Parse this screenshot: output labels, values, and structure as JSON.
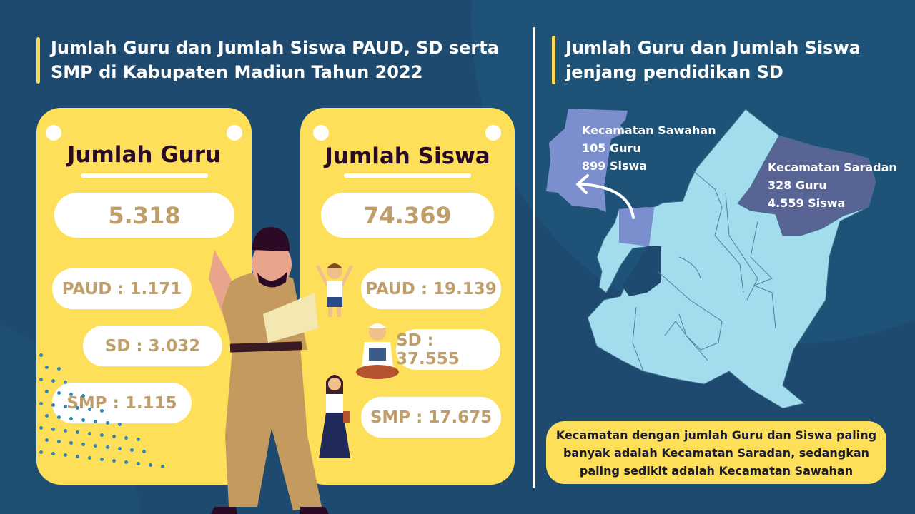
{
  "left_title": "Jumlah Guru dan Jumlah Siswa PAUD, SD serta SMP di Kabupaten Madiun Tahun 2022",
  "right_title": "Jumlah Guru dan Jumlah Siswa jenjang pendidikan SD",
  "guru_card": {
    "title": "Jumlah Guru",
    "total": "5.318",
    "items": [
      "PAUD : 1.171",
      "SD : 3.032",
      "SMP : 1.115"
    ]
  },
  "siswa_card": {
    "title": "Jumlah Siswa",
    "total": "74.369",
    "items": [
      "PAUD : 19.139",
      "SD : 37.555",
      "SMP : 17.675"
    ]
  },
  "map": {
    "sawahan": {
      "name": "Kecamatan Sawahan",
      "guru": "105 Guru",
      "siswa": "899 Siswa",
      "color": "#7b8fcf"
    },
    "saradan": {
      "name": "Kecamatan Saradan",
      "guru": "328 Guru",
      "siswa": "4.559 Siswa",
      "color": "#586494"
    },
    "base_color": "#a3dcec"
  },
  "conclusion": "Kecamatan dengan jumlah Guru dan Siswa paling banyak adalah Kecamatan Saradan, sedangkan paling sedikit adalah Kecamatan Sawahan",
  "colors": {
    "background": "#1d4a6e",
    "card": "#fddf5a",
    "value_text": "#c09e6a"
  }
}
